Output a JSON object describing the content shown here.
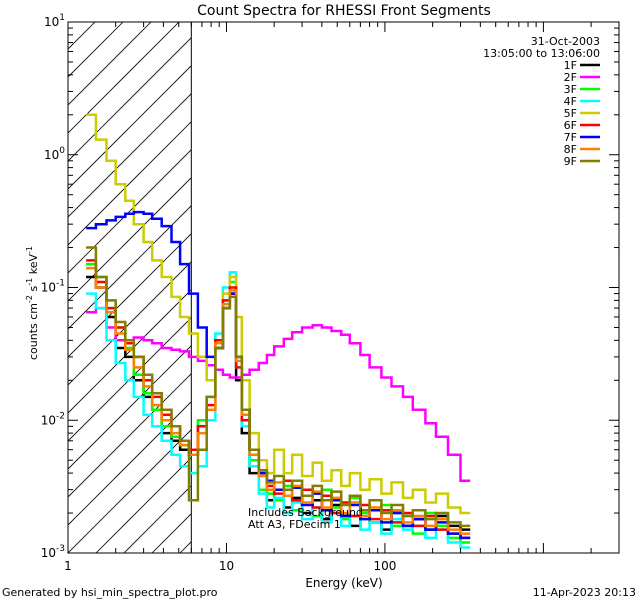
{
  "chart_data": {
    "type": "line",
    "title": "Count Spectra for RHESSI Front Segments",
    "xlabel": "Energy (keV)",
    "ylabel_parts": [
      "counts cm",
      "-2",
      " s",
      "-1",
      " keV",
      "-1"
    ],
    "xscale": "log",
    "yscale": "log",
    "xlim": [
      1,
      3000
    ],
    "ylim": [
      0.001,
      10
    ],
    "x_ticks": [
      {
        "value": 1,
        "label": "1"
      },
      {
        "value": 10,
        "label": "10"
      },
      {
        "value": 100,
        "label": "100"
      }
    ],
    "y_ticks": [
      {
        "value": 0.001,
        "base": "10",
        "exp": "-3"
      },
      {
        "value": 0.01,
        "base": "10",
        "exp": "-2"
      },
      {
        "value": 0.1,
        "base": "10",
        "exp": "-1"
      },
      {
        "value": 1,
        "base": "10",
        "exp": "0"
      },
      {
        "value": 10,
        "base": "10",
        "exp": "1"
      }
    ],
    "hatched_region": {
      "x_from": 1,
      "x_to": 6
    },
    "info_lines": [
      "31-Oct-2003",
      "13:05:00 to 13:06:00"
    ],
    "annotations": [
      "Includes Background",
      "Att A3, FDecim 1"
    ],
    "series": [
      {
        "name": "1F",
        "color": "#000000",
        "e": [
          1.3,
          1.5,
          1.75,
          2,
          2.3,
          2.6,
          3,
          3.4,
          3.9,
          4.5,
          5.1,
          5.8,
          6.6,
          7.5,
          8.5,
          9.5,
          10.5,
          11.5,
          12.5,
          14,
          16,
          18,
          20,
          23,
          26,
          30,
          35,
          40,
          46,
          53,
          60,
          70,
          80,
          95,
          110,
          130,
          150,
          180,
          210,
          250,
          300
        ],
        "v": [
          0.12,
          0.1,
          0.06,
          0.035,
          0.03,
          0.02,
          0.015,
          0.012,
          0.008,
          0.007,
          0.006,
          0.0055,
          0.009,
          0.012,
          0.035,
          0.07,
          0.09,
          0.02,
          0.008,
          0.004,
          0.003,
          0.0025,
          0.003,
          0.0022,
          0.0026,
          0.002,
          0.0025,
          0.0018,
          0.0023,
          0.0019,
          0.0016,
          0.0021,
          0.0017,
          0.0015,
          0.002,
          0.0016,
          0.0018,
          0.0015,
          0.0019,
          0.0016,
          0.0015
        ]
      },
      {
        "name": "2F",
        "color": "#ff00ff",
        "e": [
          1.3,
          1.5,
          1.75,
          2,
          2.3,
          2.6,
          3,
          3.4,
          3.9,
          4.5,
          5.1,
          5.8,
          6.6,
          7.5,
          8.5,
          9.5,
          10.5,
          11.5,
          12.5,
          14,
          16,
          18,
          20,
          23,
          26,
          30,
          35,
          40,
          46,
          53,
          60,
          70,
          80,
          95,
          110,
          130,
          150,
          180,
          210,
          250,
          300
        ],
        "v": [
          0.065,
          0.07,
          0.05,
          0.04,
          0.038,
          0.042,
          0.04,
          0.038,
          0.035,
          0.034,
          0.033,
          0.03,
          0.028,
          0.026,
          0.024,
          0.022,
          0.021,
          0.021,
          0.022,
          0.024,
          0.027,
          0.031,
          0.036,
          0.041,
          0.046,
          0.05,
          0.052,
          0.05,
          0.047,
          0.044,
          0.038,
          0.031,
          0.025,
          0.021,
          0.018,
          0.015,
          0.012,
          0.0095,
          0.0075,
          0.0055,
          0.0035
        ]
      },
      {
        "name": "3F",
        "color": "#00ff00",
        "e": [
          1.3,
          1.5,
          1.75,
          2,
          2.3,
          2.6,
          3,
          3.4,
          3.9,
          4.5,
          5.1,
          5.8,
          6.6,
          7.5,
          8.5,
          9.5,
          10.5,
          11.5,
          12.5,
          14,
          16,
          18,
          20,
          23,
          26,
          30,
          35,
          40,
          46,
          53,
          60,
          70,
          80,
          95,
          110,
          130,
          150,
          180,
          210,
          250,
          300
        ],
        "v": [
          0.15,
          0.12,
          0.07,
          0.05,
          0.035,
          0.022,
          0.016,
          0.012,
          0.009,
          0.0075,
          0.0065,
          0.006,
          0.01,
          0.015,
          0.04,
          0.08,
          0.11,
          0.03,
          0.01,
          0.005,
          0.003,
          0.0028,
          0.0025,
          0.0032,
          0.0021,
          0.0027,
          0.0019,
          0.003,
          0.0022,
          0.0018,
          0.0026,
          0.002,
          0.0017,
          0.0023,
          0.0016,
          0.0019,
          0.0014,
          0.002,
          0.0016,
          0.0013,
          0.0012
        ]
      },
      {
        "name": "4F",
        "color": "#00ffff",
        "e": [
          1.3,
          1.5,
          1.75,
          2,
          2.3,
          2.6,
          3,
          3.4,
          3.9,
          4.5,
          5.1,
          5.8,
          6.6,
          7.5,
          8.5,
          9.5,
          10.5,
          11.5,
          12.5,
          14,
          16,
          18,
          20,
          23,
          26,
          30,
          35,
          40,
          46,
          53,
          60,
          70,
          80,
          95,
          110,
          130,
          150,
          180,
          210,
          250,
          300
        ],
        "v": [
          0.09,
          0.07,
          0.04,
          0.027,
          0.02,
          0.015,
          0.011,
          0.009,
          0.007,
          0.0055,
          0.0045,
          0.004,
          0.0045,
          0.01,
          0.045,
          0.1,
          0.13,
          0.025,
          0.009,
          0.0045,
          0.0028,
          0.0022,
          0.0026,
          0.002,
          0.0024,
          0.0018,
          0.0022,
          0.0017,
          0.002,
          0.0016,
          0.0019,
          0.0015,
          0.0017,
          0.0014,
          0.0018,
          0.0015,
          0.0016,
          0.0013,
          0.0015,
          0.0012,
          0.0011
        ]
      },
      {
        "name": "5F",
        "color": "#cccc00",
        "e": [
          1.3,
          1.5,
          1.75,
          2,
          2.3,
          2.6,
          3,
          3.4,
          3.9,
          4.5,
          5.1,
          5.8,
          6.6,
          7.5,
          8.5,
          9.5,
          10.5,
          11.5,
          12.5,
          14,
          16,
          18,
          20,
          23,
          26,
          30,
          35,
          40,
          46,
          53,
          60,
          70,
          80,
          95,
          110,
          130,
          150,
          180,
          210,
          250,
          300
        ],
        "v": [
          2.0,
          1.3,
          0.9,
          0.6,
          0.45,
          0.3,
          0.22,
          0.16,
          0.12,
          0.085,
          0.06,
          0.045,
          0.03,
          0.02,
          0.04,
          0.09,
          0.12,
          0.06,
          0.02,
          0.008,
          0.005,
          0.004,
          0.006,
          0.004,
          0.0055,
          0.0038,
          0.0048,
          0.0035,
          0.0042,
          0.0032,
          0.004,
          0.003,
          0.0036,
          0.0028,
          0.0034,
          0.0026,
          0.003,
          0.0024,
          0.0028,
          0.0022,
          0.002
        ]
      },
      {
        "name": "6F",
        "color": "#ff0000",
        "e": [
          1.3,
          1.5,
          1.75,
          2,
          2.3,
          2.6,
          3,
          3.4,
          3.9,
          4.5,
          5.1,
          5.8,
          6.6,
          7.5,
          8.5,
          9.5,
          10.5,
          11.5,
          12.5,
          14,
          16,
          18,
          20,
          23,
          26,
          30,
          35,
          40,
          46,
          53,
          60,
          70,
          80,
          95,
          110,
          130,
          150,
          180,
          210,
          250,
          300
        ],
        "v": [
          0.16,
          0.11,
          0.07,
          0.05,
          0.038,
          0.03,
          0.02,
          0.015,
          0.011,
          0.009,
          0.007,
          0.006,
          0.009,
          0.013,
          0.04,
          0.08,
          0.1,
          0.025,
          0.01,
          0.006,
          0.004,
          0.0032,
          0.0028,
          0.0035,
          0.0025,
          0.003,
          0.0022,
          0.0027,
          0.002,
          0.0024,
          0.0019,
          0.0023,
          0.0018,
          0.0021,
          0.0017,
          0.002,
          0.0016,
          0.0019,
          0.0015,
          0.0014,
          0.0013
        ]
      },
      {
        "name": "7F",
        "color": "#0000ff",
        "e": [
          1.3,
          1.5,
          1.75,
          2,
          2.3,
          2.6,
          3,
          3.4,
          3.9,
          4.5,
          5.1,
          5.8,
          6.6,
          7.5,
          8.5,
          9.5,
          10.5,
          11.5,
          12.5,
          14,
          16,
          18,
          20,
          23,
          26,
          30,
          35,
          40,
          46,
          53,
          60,
          70,
          80,
          95,
          110,
          130,
          150,
          180,
          210,
          250,
          300
        ],
        "v": [
          0.28,
          0.3,
          0.32,
          0.34,
          0.36,
          0.37,
          0.36,
          0.33,
          0.29,
          0.22,
          0.15,
          0.09,
          0.05,
          0.03,
          0.035,
          0.07,
          0.09,
          0.03,
          0.012,
          0.006,
          0.004,
          0.0035,
          0.003,
          0.0027,
          0.0031,
          0.0023,
          0.0028,
          0.0021,
          0.0025,
          0.0019,
          0.0023,
          0.0018,
          0.0021,
          0.0017,
          0.002,
          0.0016,
          0.0018,
          0.0015,
          0.0017,
          0.0014,
          0.0013
        ]
      },
      {
        "name": "8F",
        "color": "#ff8000",
        "e": [
          1.3,
          1.5,
          1.75,
          2,
          2.3,
          2.6,
          3,
          3.4,
          3.9,
          4.5,
          5.1,
          5.8,
          6.6,
          7.5,
          8.5,
          9.5,
          10.5,
          11.5,
          12.5,
          14,
          16,
          18,
          20,
          23,
          26,
          30,
          35,
          40,
          46,
          53,
          60,
          70,
          80,
          95,
          110,
          130,
          150,
          180,
          210,
          250,
          300
        ],
        "v": [
          0.14,
          0.1,
          0.065,
          0.045,
          0.034,
          0.025,
          0.018,
          0.013,
          0.01,
          0.008,
          0.0065,
          0.0055,
          0.008,
          0.012,
          0.038,
          0.075,
          0.095,
          0.028,
          0.011,
          0.0055,
          0.0038,
          0.003,
          0.0034,
          0.0027,
          0.0032,
          0.0024,
          0.0029,
          0.0022,
          0.0026,
          0.002,
          0.0024,
          0.0019,
          0.0022,
          0.0018,
          0.0021,
          0.0017,
          0.0019,
          0.0016,
          0.0018,
          0.0015,
          0.0014
        ]
      },
      {
        "name": "9F",
        "color": "#808000",
        "e": [
          1.3,
          1.5,
          1.75,
          2,
          2.3,
          2.6,
          3,
          3.4,
          3.9,
          4.5,
          5.1,
          5.8,
          6.6,
          7.5,
          8.5,
          9.5,
          10.5,
          11.5,
          12.5,
          14,
          16,
          18,
          20,
          23,
          26,
          30,
          35,
          40,
          46,
          53,
          60,
          70,
          80,
          95,
          110,
          130,
          150,
          180,
          210,
          250,
          300
        ],
        "v": [
          0.2,
          0.12,
          0.08,
          0.055,
          0.04,
          0.03,
          0.022,
          0.016,
          0.012,
          0.009,
          0.007,
          0.0025,
          0.006,
          0.015,
          0.035,
          0.07,
          0.085,
          0.03,
          0.012,
          0.006,
          0.0042,
          0.0034,
          0.0038,
          0.003,
          0.0035,
          0.0027,
          0.0032,
          0.0025,
          0.0029,
          0.0023,
          0.0027,
          0.0021,
          0.0025,
          0.002,
          0.0023,
          0.0019,
          0.0021,
          0.0018,
          0.002,
          0.0017,
          0.0016
        ]
      }
    ]
  },
  "footer": {
    "generated_by": "Generated by hsi_min_spectra_plot.pro",
    "date": "11-Apr-2023 20:13"
  }
}
